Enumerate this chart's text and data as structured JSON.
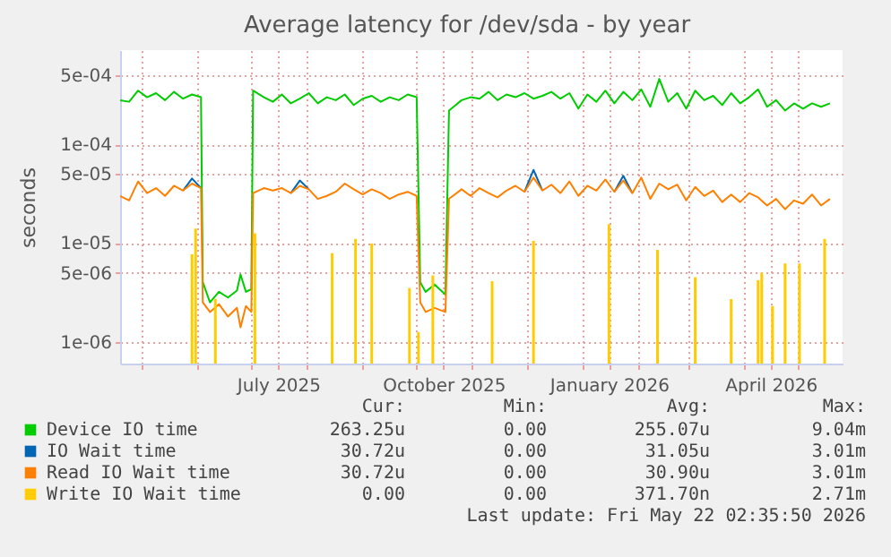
{
  "chart_data": {
    "type": "line",
    "title": "Average latency for /dev/sda - by year",
    "ylabel": "seconds",
    "log": true,
    "grid": true,
    "legend": "bottom",
    "xlim": [
      "2025-04-19",
      "2026-05-26"
    ],
    "xticks": [
      {
        "value": "2025-05-01",
        "label": null
      },
      {
        "value": "2025-06-01",
        "label": null
      },
      {
        "value": "2025-07-01",
        "label": null
      },
      {
        "value": "2025-07-16",
        "label": "July 2025"
      },
      {
        "value": "2025-08-01",
        "label": null
      },
      {
        "value": "2025-09-01",
        "label": null
      },
      {
        "value": "2025-10-01",
        "label": null
      },
      {
        "value": "2025-10-16",
        "label": "October 2025"
      },
      {
        "value": "2025-11-01",
        "label": null
      },
      {
        "value": "2025-12-01",
        "label": null
      },
      {
        "value": "2026-01-01",
        "label": null
      },
      {
        "value": "2026-01-16",
        "label": "January 2026"
      },
      {
        "value": "2026-02-01",
        "label": null
      },
      {
        "value": "2026-03-01",
        "label": null
      },
      {
        "value": "2026-04-01",
        "label": null
      },
      {
        "value": "2026-04-16",
        "label": "April 2026"
      },
      {
        "value": "2026-05-01",
        "label": null
      }
    ],
    "ylim": [
      6e-07,
      0.0009
    ],
    "yticks": [
      {
        "value": 1e-06,
        "label": "1e-06"
      },
      {
        "value": 5e-06,
        "label": "5e-06"
      },
      {
        "value": 1e-05,
        "label": "1e-05"
      },
      {
        "value": 5e-05,
        "label": "5e-05"
      },
      {
        "value": 0.0001,
        "label": "1e-04"
      },
      {
        "value": 0.0005,
        "label": "5e-04"
      }
    ],
    "x": [
      "2025-04-19",
      "2025-04-24",
      "2025-04-29",
      "2025-05-04",
      "2025-05-09",
      "2025-05-14",
      "2025-05-19",
      "2025-05-24",
      "2025-05-29",
      "2025-06-03",
      "2025-06-04",
      "2025-06-08",
      "2025-06-13",
      "2025-06-18",
      "2025-06-23",
      "2025-06-25",
      "2025-06-28",
      "2025-07-01",
      "2025-07-02",
      "2025-07-08",
      "2025-07-13",
      "2025-07-18",
      "2025-07-23",
      "2025-07-28",
      "2025-08-02",
      "2025-08-07",
      "2025-08-12",
      "2025-08-17",
      "2025-08-22",
      "2025-08-27",
      "2025-09-01",
      "2025-09-06",
      "2025-09-11",
      "2025-09-16",
      "2025-09-21",
      "2025-09-26",
      "2025-10-01",
      "2025-10-03",
      "2025-10-06",
      "2025-10-11",
      "2025-10-17",
      "2025-10-19",
      "2025-10-26",
      "2025-10-31",
      "2025-11-05",
      "2025-11-10",
      "2025-11-15",
      "2025-11-20",
      "2025-11-25",
      "2025-11-30",
      "2025-12-05",
      "2025-12-10",
      "2025-12-15",
      "2025-12-20",
      "2025-12-25",
      "2025-12-30",
      "2026-01-04",
      "2026-01-09",
      "2026-01-14",
      "2026-01-19",
      "2026-01-24",
      "2026-01-29",
      "2026-02-03",
      "2026-02-08",
      "2026-02-13",
      "2026-02-18",
      "2026-02-23",
      "2026-02-28",
      "2026-03-05",
      "2026-03-10",
      "2026-03-15",
      "2026-03-20",
      "2026-03-25",
      "2026-03-30",
      "2026-04-04",
      "2026-04-09",
      "2026-04-14",
      "2026-04-19",
      "2026-04-24",
      "2026-04-29",
      "2026-05-04",
      "2026-05-09",
      "2026-05-14",
      "2026-05-19"
    ],
    "series": [
      {
        "name": "Device IO time",
        "color": "#00cc00",
        "values": [
          0.00028,
          0.00027,
          0.00035,
          0.0003,
          0.00033,
          0.00028,
          0.00034,
          0.00029,
          0.00032,
          0.0003,
          4e-06,
          2.5e-06,
          3.2e-06,
          2.8e-06,
          3.3e-06,
          4.8e-06,
          3.2e-06,
          3.4e-06,
          0.00035,
          0.0003,
          0.00027,
          0.00032,
          0.00026,
          0.00029,
          0.00033,
          0.00026,
          0.0003,
          0.00028,
          0.00032,
          0.00025,
          0.00029,
          0.00031,
          0.00027,
          0.0003,
          0.00028,
          0.00032,
          0.0003,
          4e-06,
          3.2e-06,
          3.8e-06,
          3e-06,
          0.00022,
          0.00028,
          0.0003,
          0.00029,
          0.00034,
          0.00028,
          0.00032,
          0.0003,
          0.00033,
          0.00029,
          0.00031,
          0.00034,
          0.00029,
          0.00033,
          0.00023,
          0.00032,
          0.00027,
          0.00035,
          0.00026,
          0.00034,
          0.00028,
          0.00036,
          0.00024,
          0.00046,
          0.00027,
          0.00033,
          0.00023,
          0.00035,
          0.00028,
          0.00031,
          0.00025,
          0.00033,
          0.00026,
          0.0003,
          0.00036,
          0.00024,
          0.00028,
          0.00022,
          0.00026,
          0.00023,
          0.00026,
          0.00024,
          0.00026
        ]
      },
      {
        "name": "IO Wait time",
        "color": "#0066b3",
        "values": [
          null,
          null,
          null,
          null,
          null,
          null,
          null,
          3.4e-05,
          4.5e-05,
          3.6e-05,
          null,
          null,
          null,
          null,
          null,
          null,
          null,
          null,
          null,
          null,
          null,
          null,
          3.2e-05,
          4.3e-05,
          3.5e-05,
          null,
          null,
          null,
          null,
          null,
          null,
          null,
          null,
          null,
          null,
          null,
          null,
          null,
          null,
          null,
          null,
          null,
          null,
          null,
          null,
          null,
          null,
          null,
          null,
          3.3e-05,
          5.5e-05,
          3.4e-05,
          null,
          null,
          null,
          null,
          null,
          null,
          null,
          3.3e-05,
          4.8e-05,
          3.2e-05,
          null,
          null,
          null,
          null,
          null,
          null,
          null,
          null,
          null,
          null,
          null,
          null,
          null,
          null,
          null,
          null,
          null,
          null,
          null,
          null,
          null,
          null
        ]
      },
      {
        "name": "Read IO Wait time",
        "color": "#ff8000",
        "values": [
          3e-05,
          2.7e-05,
          4.2e-05,
          3.2e-05,
          3.6e-05,
          3e-05,
          3.8e-05,
          3.4e-05,
          4e-05,
          3.6e-05,
          2.5e-06,
          2e-06,
          2.4e-06,
          1.8e-06,
          2.2e-06,
          1.4e-06,
          2.3e-06,
          2e-06,
          3.2e-05,
          3.6e-05,
          3.4e-05,
          3.6e-05,
          3.2e-05,
          3.8e-05,
          3.5e-05,
          2.8e-05,
          3e-05,
          3.3e-05,
          4e-05,
          3.5e-05,
          3.1e-05,
          3.5e-05,
          3.2e-05,
          2.8e-05,
          3.1e-05,
          3.3e-05,
          3e-05,
          2.5e-06,
          2e-06,
          2.2e-06,
          2e-06,
          2.8e-05,
          3.5e-05,
          3e-05,
          3.6e-05,
          3.2e-05,
          2.9e-05,
          3.4e-05,
          3.8e-05,
          3.3e-05,
          4.6e-05,
          3.4e-05,
          3.9e-05,
          3.2e-05,
          4.2e-05,
          3e-05,
          3.8e-05,
          3.4e-05,
          4.4e-05,
          3.3e-05,
          4.3e-05,
          3.2e-05,
          4.6e-05,
          2.8e-05,
          4e-05,
          3.5e-05,
          3.9e-05,
          2.7e-05,
          3.7e-05,
          3e-05,
          3.4e-05,
          2.6e-05,
          3.1e-05,
          2.6e-05,
          3.2e-05,
          2.9e-05,
          2.4e-05,
          2.8e-05,
          2.2e-05,
          2.7e-05,
          2.5e-05,
          3.1e-05,
          2.4e-05,
          2.8e-05
        ]
      },
      {
        "name": "Write IO Wait time",
        "color": "#ffcc00",
        "type": "bar",
        "x": [
          "2025-05-29",
          "2025-05-31",
          "2025-06-11",
          "2025-07-03",
          "2025-08-15",
          "2025-08-28",
          "2025-09-06",
          "2025-09-27",
          "2025-10-02",
          "2025-10-10",
          "2025-11-12",
          "2025-12-05",
          "2026-01-16",
          "2026-02-12",
          "2026-03-05",
          "2026-03-25",
          "2026-04-09",
          "2026-04-11",
          "2026-04-17",
          "2026-04-24",
          "2026-05-02",
          "2026-05-16"
        ],
        "values": [
          7.7e-06,
          1.4e-05,
          2.7e-06,
          1.25e-05,
          7.9e-06,
          1.1e-05,
          9.9e-06,
          3.5e-06,
          1.25e-06,
          4.7e-06,
          4.1e-06,
          1.05e-05,
          1.55e-05,
          8.5e-06,
          4.5e-06,
          2.7e-06,
          4.2e-06,
          5e-06,
          2.3e-06,
          6.2e-06,
          6.2e-06,
          1.1e-05
        ]
      }
    ],
    "annotations": [
      "Cur:",
      "Min:",
      "Avg:",
      "Max:",
      "263.25u",
      "0.00",
      "255.07u",
      "9.04m",
      "30.72u",
      "0.00",
      "31.05u",
      "3.01m",
      "30.72u",
      "0.00",
      "30.90u",
      "3.01m",
      "0.00",
      "0.00",
      "371.70n",
      "2.71m",
      "Last update: Fri May 22 02:35:50 2026"
    ]
  }
}
